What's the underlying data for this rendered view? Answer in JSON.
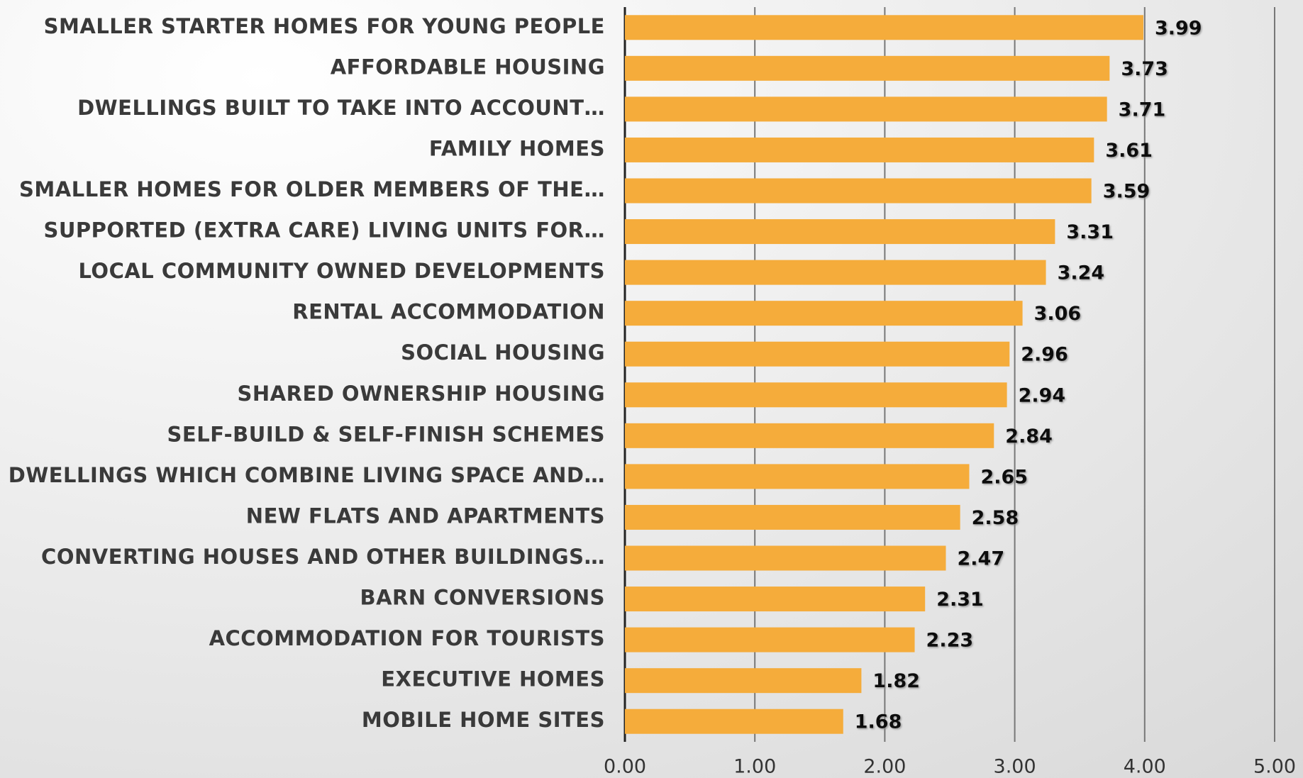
{
  "chart_data": {
    "type": "hbar",
    "categories": [
      "SMALLER STARTER HOMES FOR YOUNG PEOPLE",
      "AFFORDABLE HOUSING",
      "DWELLINGS BUILT TO TAKE INTO ACCOUNT…",
      "FAMILY HOMES",
      "SMALLER HOMES FOR OLDER MEMBERS OF THE…",
      "SUPPORTED (EXTRA CARE) LIVING UNITS FOR…",
      "LOCAL COMMUNITY OWNED DEVELOPMENTS",
      "RENTAL ACCOMMODATION",
      "SOCIAL HOUSING",
      "SHARED OWNERSHIP HOUSING",
      "SELF-BUILD & SELF-FINISH SCHEMES",
      "DWELLINGS WHICH COMBINE LIVING SPACE AND…",
      "NEW FLATS AND APARTMENTS",
      "CONVERTING HOUSES AND OTHER BUILDINGS…",
      "BARN CONVERSIONS",
      "ACCOMMODATION FOR TOURISTS",
      "EXECUTIVE HOMES",
      "MOBILE HOME SITES"
    ],
    "values": [
      3.99,
      3.73,
      3.71,
      3.61,
      3.59,
      3.31,
      3.24,
      3.06,
      2.96,
      2.94,
      2.84,
      2.65,
      2.58,
      2.47,
      2.31,
      2.23,
      1.82,
      1.68
    ],
    "color": "#f5ac3b",
    "xlim": [
      0,
      5
    ],
    "xticks": [
      {
        "value": 0,
        "label": "0.00"
      },
      {
        "value": 1,
        "label": "1.00"
      },
      {
        "value": 2,
        "label": "2.00"
      },
      {
        "value": 3,
        "label": "3.00"
      },
      {
        "value": 4,
        "label": "4.00"
      },
      {
        "value": 5,
        "label": "5.00"
      }
    ],
    "grid": true
  }
}
